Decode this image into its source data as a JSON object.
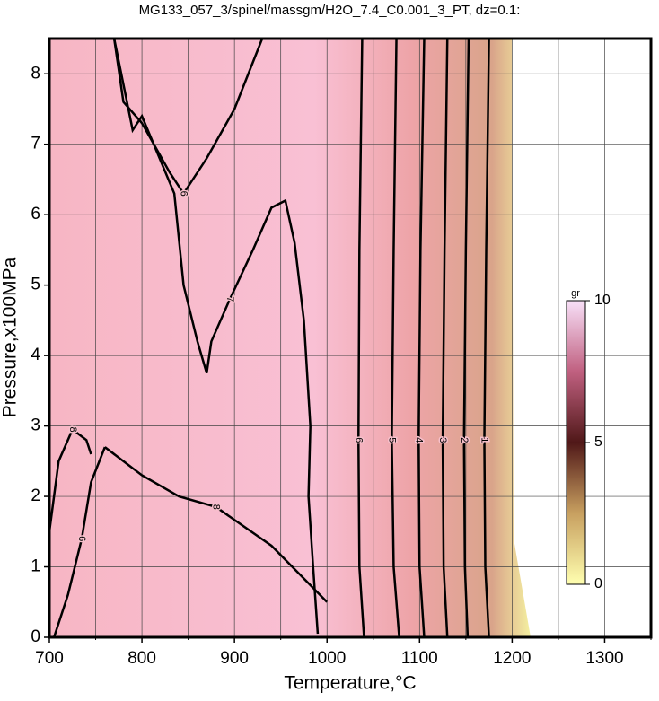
{
  "chart_data": {
    "type": "contour",
    "title": "MG133_057_3/spinel/massgm/H2O_7.4_C0.001_3_PT, dz=0.1:",
    "x_label": "Temperature,°C",
    "y_label": "Pressure,x100MPa",
    "xlim": [
      700,
      1350
    ],
    "ylim": [
      0,
      8.5
    ],
    "xticks": [
      700,
      800,
      900,
      1000,
      1100,
      1200,
      1300
    ],
    "xminor_ticks": [
      750,
      850,
      950,
      1050,
      1150,
      1250,
      1350
    ],
    "yticks": [
      0,
      1,
      2,
      3,
      4,
      5,
      6,
      7,
      8
    ],
    "grid": true,
    "contours": [
      {
        "label": "7",
        "x": [
          990,
          985,
          980,
          982,
          975,
          965,
          955,
          940,
          920,
          895,
          875,
          870,
          860,
          845,
          835,
          800,
          790,
          770
        ],
        "y": [
          0.05,
          1,
          2,
          3,
          4.5,
          5.6,
          6.2,
          6.1,
          5.5,
          4.8,
          4.2,
          3.75,
          4.2,
          5,
          6.3,
          7.4,
          7.2,
          8.5
        ]
      },
      {
        "label": "6",
        "x": [
          770,
          780,
          800,
          830,
          845,
          870,
          900,
          930
        ],
        "y": [
          8.5,
          7.6,
          7.3,
          6.6,
          6.3,
          6.8,
          7.5,
          8.5
        ]
      },
      {
        "label": "8",
        "x": [
          700,
          710,
          725,
          740,
          745
        ],
        "y": [
          1.5,
          2.5,
          2.95,
          2.8,
          2.6
        ]
      },
      {
        "label": "6",
        "x": [
          705,
          720,
          735,
          745,
          760
        ],
        "y": [
          0,
          0.6,
          1.4,
          2.2,
          2.7
        ]
      },
      {
        "label": "8",
        "x": [
          760,
          800,
          840,
          880,
          940,
          1000
        ],
        "y": [
          2.7,
          2.3,
          2.0,
          1.85,
          1.3,
          0.5
        ]
      },
      {
        "label": "6",
        "x": [
          1040,
          1035,
          1034,
          1035,
          1038
        ],
        "y": [
          0,
          1,
          2.8,
          5.5,
          8.5
        ]
      },
      {
        "label": "5",
        "x": [
          1078,
          1072,
          1070,
          1072,
          1075
        ],
        "y": [
          0,
          1,
          2.8,
          5.5,
          8.5
        ]
      },
      {
        "label": "4",
        "x": [
          1105,
          1100,
          1099,
          1101,
          1105
        ],
        "y": [
          0,
          1,
          2.8,
          5.5,
          8.5
        ]
      },
      {
        "label": "3",
        "x": [
          1130,
          1126,
          1125,
          1127,
          1130
        ],
        "y": [
          0,
          1,
          2.8,
          5.5,
          8.5
        ]
      },
      {
        "label": "2",
        "x": [
          1152,
          1149,
          1148,
          1150,
          1153
        ],
        "y": [
          0,
          1,
          2.8,
          5.5,
          8.5
        ]
      },
      {
        "label": "1",
        "x": [
          1175,
          1171,
          1170,
          1172,
          1175
        ],
        "y": [
          0,
          1,
          2.8,
          5.5,
          8.5
        ]
      }
    ],
    "colorbar": {
      "label": "gr",
      "lim": [
        0,
        10
      ],
      "ticks": [
        0,
        5,
        10
      ]
    }
  }
}
